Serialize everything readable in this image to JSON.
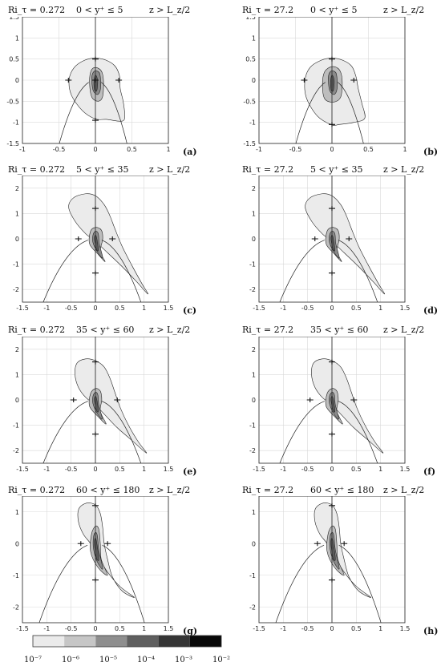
{
  "chart_data": [
    {
      "panel": "(a)",
      "title_ri": "Ri_τ = 0.272",
      "title_y": "0 < y⁺ ≤ 5",
      "title_z": "z > L_z/2",
      "xlim": [
        -1,
        1
      ],
      "ylim": [
        -1.5,
        1.5
      ],
      "xticks": [
        "-1",
        "-0.5",
        "0",
        "0.5",
        "1"
      ],
      "yticks": [
        "-1.5",
        "-1",
        "-0.5",
        "0",
        "0.5",
        "1",
        "1.5"
      ],
      "levels": [
        {
          "level": "1e-7",
          "contour": [
            [
              0,
              0.52
            ],
            [
              0.15,
              0.47
            ],
            [
              0.28,
              0.32
            ],
            [
              0.36,
              0.1
            ],
            [
              0.38,
              -0.15
            ],
            [
              0.4,
              -0.5
            ],
            [
              0.42,
              -0.8
            ],
            [
              0.38,
              -0.97
            ],
            [
              0.15,
              -0.92
            ],
            [
              0,
              -0.9
            ],
            [
              -0.2,
              -0.7
            ],
            [
              -0.35,
              -0.3
            ],
            [
              -0.35,
              0.05
            ],
            [
              -0.28,
              0.3
            ],
            [
              -0.15,
              0.47
            ]
          ]
        },
        {
          "level": "1e-6",
          "contour": [
            [
              0,
              0.3
            ],
            [
              0.08,
              0.22
            ],
            [
              0.11,
              0
            ],
            [
              0.1,
              -0.4
            ],
            [
              0.07,
              -0.5
            ],
            [
              0,
              -0.5
            ],
            [
              -0.07,
              -0.35
            ],
            [
              -0.08,
              0
            ],
            [
              -0.06,
              0.22
            ]
          ]
        },
        {
          "level": "1e-5",
          "contour": [
            [
              0,
              0.2
            ],
            [
              0.05,
              0.12
            ],
            [
              0.06,
              -0.2
            ],
            [
              0.03,
              -0.3
            ],
            [
              0,
              -0.25
            ],
            [
              -0.03,
              -0.1
            ],
            [
              -0.04,
              0.1
            ]
          ]
        },
        {
          "level": "1e-4",
          "contour": [
            [
              0,
              0.12
            ],
            [
              0.03,
              0
            ],
            [
              0.02,
              -0.2
            ],
            [
              0,
              -0.22
            ],
            [
              -0.02,
              -0.05
            ]
          ]
        }
      ],
      "tick_marks": [
        [
          0,
          0.5
        ],
        [
          0,
          -0.95
        ],
        [
          0.32,
          0
        ],
        [
          -0.37,
          0
        ],
        [
          0,
          0
        ]
      ],
      "curves": "y = x^2-structure lines"
    },
    {
      "panel": "(b)",
      "title_ri": "Ri_τ = 27.2",
      "title_y": "0 < y⁺ ≤ 5",
      "title_z": "z > L_z/2",
      "xlim": [
        -1,
        1
      ],
      "ylim": [
        -1.5,
        1.5
      ],
      "xticks": [
        "-1",
        "-0.5",
        "0",
        "0.5",
        "1"
      ],
      "yticks": [
        "-1.5",
        "-1",
        "-0.5",
        "0",
        "0.5",
        "1",
        "1.5"
      ],
      "levels": [
        {
          "level": "1e-7",
          "contour": [
            [
              0,
              0.52
            ],
            [
              0.15,
              0.47
            ],
            [
              0.28,
              0.32
            ],
            [
              0.34,
              0.05
            ],
            [
              0.38,
              -0.2
            ],
            [
              0.42,
              -0.55
            ],
            [
              0.45,
              -0.9
            ],
            [
              0.3,
              -1.0
            ],
            [
              0.1,
              -1.05
            ],
            [
              0,
              -1.05
            ],
            [
              -0.2,
              -0.85
            ],
            [
              -0.35,
              -0.4
            ],
            [
              -0.37,
              0
            ],
            [
              -0.3,
              0.3
            ],
            [
              -0.15,
              0.47
            ]
          ]
        },
        {
          "level": "1e-6",
          "contour": [
            [
              0,
              0.32
            ],
            [
              0.1,
              0.25
            ],
            [
              0.14,
              0
            ],
            [
              0.12,
              -0.42
            ],
            [
              0.02,
              -0.55
            ],
            [
              -0.1,
              -0.45
            ],
            [
              -0.12,
              -0.1
            ],
            [
              -0.1,
              0.2
            ]
          ]
        },
        {
          "level": "1e-5",
          "contour": [
            [
              0,
              0.22
            ],
            [
              0.06,
              0.15
            ],
            [
              0.08,
              -0.2
            ],
            [
              0.03,
              -0.35
            ],
            [
              -0.03,
              -0.25
            ],
            [
              -0.05,
              0
            ],
            [
              -0.04,
              0.15
            ]
          ]
        },
        {
          "level": "1e-4",
          "contour": [
            [
              0,
              0.12
            ],
            [
              0.03,
              0
            ],
            [
              0.02,
              -0.25
            ],
            [
              -0.01,
              -0.25
            ],
            [
              -0.02,
              -0.05
            ]
          ]
        }
      ],
      "tick_marks": [
        [
          0,
          0.5
        ],
        [
          0,
          -1.05
        ],
        [
          0.3,
          0
        ],
        [
          -0.38,
          0
        ]
      ]
    },
    {
      "panel": "(c)",
      "title_ri": "Ri_τ = 0.272",
      "title_y": "5 < y⁺ ≤ 35",
      "title_z": "z > L_z/2",
      "xlim": [
        -1.5,
        1.5
      ],
      "ylim": [
        -2.5,
        2.5
      ],
      "xticks": [
        "-1.5",
        "-1",
        "-0.5",
        "0",
        "0.5",
        "1",
        "1.5"
      ],
      "yticks": [
        "-2",
        "-1",
        "0",
        "1",
        "2"
      ],
      "levels": [
        {
          "level": "1e-7",
          "contour": [
            [
              0,
              1.7
            ],
            [
              -0.25,
              1.8
            ],
            [
              -0.5,
              1.5
            ],
            [
              -0.5,
              1.0
            ],
            [
              -0.3,
              0.5
            ],
            [
              0,
              0
            ],
            [
              0.3,
              -0.5
            ],
            [
              0.6,
              -1.2
            ],
            [
              0.9,
              -1.9
            ],
            [
              1.1,
              -2.15
            ],
            [
              0.9,
              -1.9
            ],
            [
              0.6,
              -0.5
            ],
            [
              0.4,
              0.5
            ],
            [
              0.3,
              1.0
            ],
            [
              0.1,
              1.5
            ]
          ],
          "note": "teardrop"
        },
        {
          "level": "1e-6",
          "contour": []
        },
        {
          "level": "1e-5",
          "contour": []
        },
        {
          "level": "1e-4",
          "contour": []
        }
      ],
      "tick_marks": [
        [
          0,
          1.2
        ],
        [
          0,
          -1.35
        ],
        [
          0.35,
          0
        ],
        [
          -0.35,
          0
        ]
      ]
    },
    {
      "panel": "(d)",
      "title_ri": "Ri_τ = 27.2",
      "title_y": "5 < y⁺ ≤ 35",
      "title_z": "z > L_z/2",
      "xlim": [
        -1.5,
        1.5
      ],
      "ylim": [
        -2.5,
        2.5
      ],
      "xticks": [
        "-1.5",
        "-1",
        "-0.5",
        "0",
        "0.5",
        "1",
        "1.5"
      ],
      "yticks": [
        "-2",
        "-1",
        "0",
        "1",
        "2"
      ],
      "tick_marks": [
        [
          0,
          1.2
        ],
        [
          0,
          -1.35
        ],
        [
          0.35,
          0
        ],
        [
          -0.35,
          0
        ]
      ]
    },
    {
      "panel": "(e)",
      "title_ri": "Ri_τ = 0.272",
      "title_y": "35 < y⁺ ≤ 60",
      "title_z": "z > L_z/2",
      "xlim": [
        -1.5,
        1.5
      ],
      "ylim": [
        -2.5,
        2.5
      ],
      "xticks": [
        "-1.5",
        "-1",
        "-0.5",
        "0",
        "0.5",
        "1",
        "1.5"
      ],
      "yticks": [
        "-2",
        "-1",
        "0",
        "1",
        "2"
      ],
      "tick_marks": [
        [
          0,
          1.5
        ],
        [
          0,
          -1.35
        ],
        [
          0.45,
          0
        ],
        [
          -0.45,
          0
        ]
      ]
    },
    {
      "panel": "(f)",
      "title_ri": "Ri_τ = 27.2",
      "title_y": "35 < y⁺ ≤ 60",
      "title_z": "z > L_z/2",
      "xlim": [
        -1.5,
        1.5
      ],
      "ylim": [
        -2.5,
        2.5
      ],
      "xticks": [
        "-1.5",
        "-1",
        "-0.5",
        "0",
        "0.5",
        "1",
        "1.5"
      ],
      "yticks": [
        "-2",
        "-1",
        "0",
        "1",
        "2"
      ],
      "tick_marks": [
        [
          0,
          1.5
        ],
        [
          0,
          -1.35
        ],
        [
          0.45,
          0
        ],
        [
          -0.45,
          0
        ]
      ]
    },
    {
      "panel": "(g)",
      "title_ri": "Ri_τ = 0.272",
      "title_y": "60 < y⁺ ≤ 180",
      "title_z": "z > L_z/2",
      "xlim": [
        -1.5,
        1.5
      ],
      "ylim": [
        -2.5,
        1.5
      ],
      "xticks": [
        "-1.5",
        "-1",
        "-0.5",
        "0",
        "0.5",
        "1",
        "1.5"
      ],
      "yticks": [
        "-2",
        "-1",
        "0",
        "1"
      ],
      "tick_marks": [
        [
          0,
          1.2
        ],
        [
          0,
          -1.15
        ],
        [
          0.25,
          0
        ],
        [
          -0.3,
          0
        ]
      ]
    },
    {
      "panel": "(h)",
      "title_ri": "Ri_τ = 27.2",
      "title_y": "60 < y⁺ ≤ 180",
      "title_z": "z > L_z/2",
      "xlim": [
        -1.5,
        1.5
      ],
      "ylim": [
        -2.5,
        1.5
      ],
      "xticks": [
        "-1.5",
        "-1",
        "-0.5",
        "0",
        "0.5",
        "1",
        "1.5"
      ],
      "yticks": [
        "-2",
        "-1",
        "0",
        "1"
      ],
      "tick_marks": [
        [
          0,
          1.2
        ],
        [
          0,
          -1.15
        ],
        [
          0.25,
          0
        ],
        [
          -0.3,
          0
        ]
      ]
    }
  ],
  "colorbar": {
    "labels": [
      "10⁻⁷",
      "10⁻⁶",
      "10⁻⁵",
      "10⁻⁴",
      "10⁻³",
      "10⁻²"
    ],
    "colors": [
      "#ebebeb",
      "#c6c6c6",
      "#8e8e8e",
      "#5f5f5f",
      "#353535",
      "#080808"
    ]
  },
  "colors": {
    "l1": "#ebebeb",
    "l2": "#bdbdbd",
    "l3": "#8a8a8a",
    "l4": "#5a5a5a",
    "line": "#222222",
    "grid": "#d9d9d9"
  }
}
